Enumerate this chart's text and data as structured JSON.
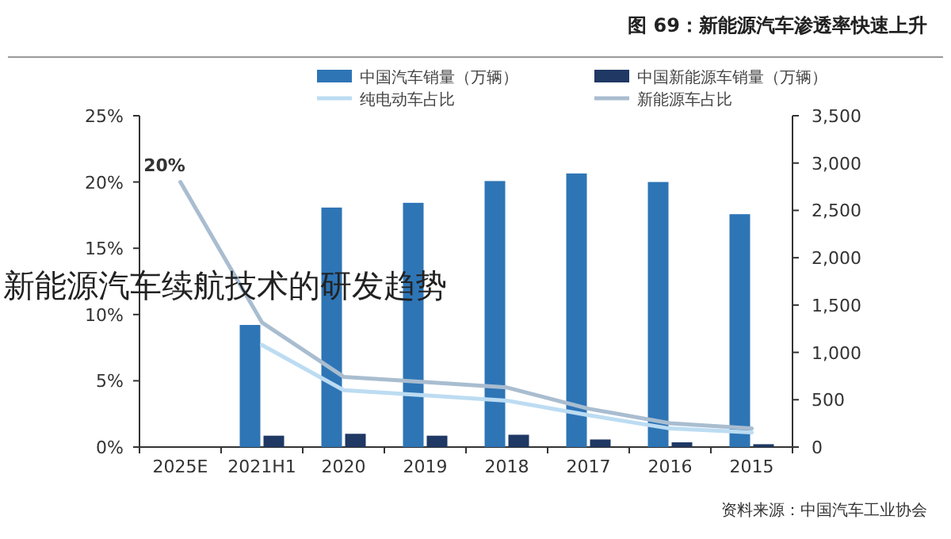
{
  "chart_data": {
    "type": "bar",
    "title": "图 69：新能源汽车渗透率快速上升",
    "categories": [
      "2025E",
      "2021H1",
      "2020",
      "2019",
      "2018",
      "2017",
      "2016",
      "2015"
    ],
    "series": [
      {
        "name": "中国汽车销量（万辆）",
        "color": "#2e75b6",
        "values": [
          null,
          1290,
          2530,
          2580,
          2810,
          2890,
          2800,
          2460
        ]
      },
      {
        "name": "中国新能源车销量（万辆）",
        "color": "#1f3864",
        "values": [
          null,
          120,
          140,
          120,
          130,
          80,
          50,
          30
        ]
      },
      {
        "name": "纯电动车占比",
        "type": "line",
        "axis": "y2",
        "color": "#bcdcf2",
        "values": [
          null,
          7.7,
          4.3,
          3.9,
          3.5,
          2.4,
          1.4,
          1.1
        ]
      },
      {
        "name": "新能源车占比",
        "type": "line",
        "axis": "y2",
        "color": "#a9bdd0",
        "values": [
          20,
          9.4,
          5.3,
          4.9,
          4.5,
          2.9,
          1.8,
          1.4
        ]
      }
    ],
    "ylim": [
      0,
      3500
    ],
    "yticks": [
      0,
      {
        "value": 500,
        "label": "500"
      },
      {
        "value": 1000,
        "label": "1,000"
      },
      {
        "value": 1500,
        "label": "1,500"
      },
      {
        "value": 2000,
        "label": "2,000"
      },
      {
        "value": 2500,
        "label": "2,500"
      },
      {
        "value": 3000,
        "label": "3,000"
      },
      {
        "value": 3500,
        "label": "3,500"
      }
    ],
    "y2lim": [
      0,
      25
    ],
    "y2ticks": [
      {
        "value": 0,
        "label": "0%"
      },
      {
        "value": 5,
        "label": "5%"
      },
      {
        "value": 10,
        "label": "10%"
      },
      {
        "value": 15,
        "label": "15%"
      },
      {
        "value": 20,
        "label": "20%"
      },
      {
        "value": 25,
        "label": "25%"
      }
    ],
    "annotations": [
      "20%",
      "新能源汽车续航技术的研发趋势",
      "资料来源：中国汽车工业协会"
    ],
    "legend": "top",
    "grid": false
  }
}
